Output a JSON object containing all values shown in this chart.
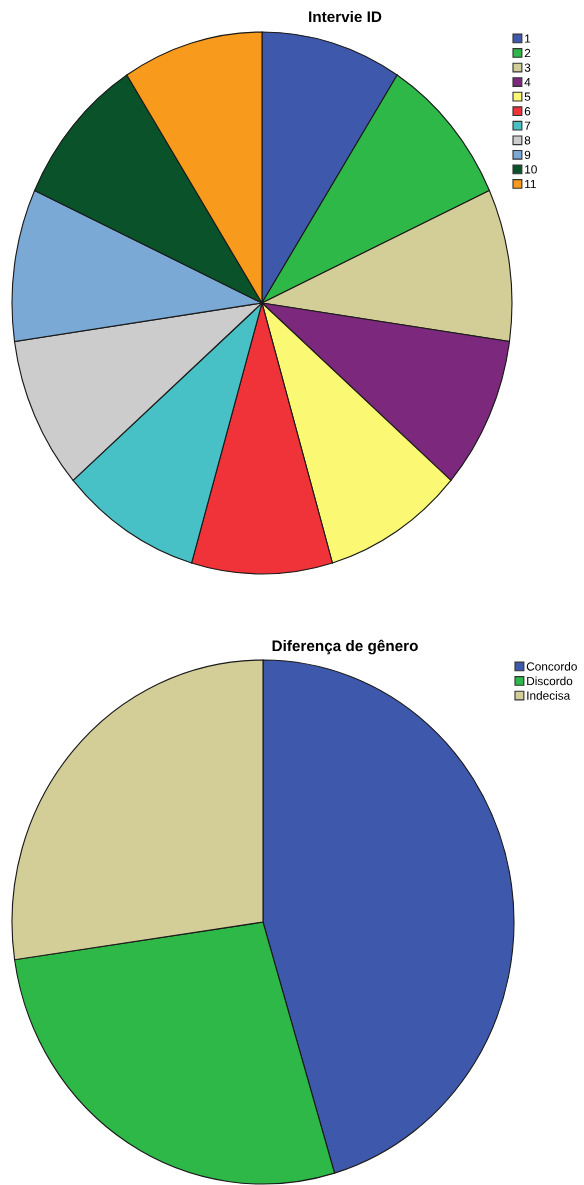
{
  "chart_data": [
    {
      "type": "pie",
      "title": "Intervie ID",
      "categories": [
        "1",
        "2",
        "3",
        "4",
        "5",
        "6",
        "7",
        "8",
        "9",
        "10",
        "11"
      ],
      "values": [
        9.09,
        9.09,
        9.09,
        9.09,
        9.09,
        9.09,
        9.09,
        9.09,
        9.09,
        9.09,
        9.09
      ],
      "colors": [
        "#3e58ac",
        "#2eb848",
        "#d3ce97",
        "#7b287d",
        "#fbf873",
        "#ef3338",
        "#48c1c6",
        "#cccccc",
        "#7ba9d5",
        "#09522a",
        "#f89a1c"
      ],
      "legend": "top right"
    },
    {
      "type": "pie",
      "title": "Diferença de gênero",
      "categories": [
        "Concordo",
        "Discordo",
        "Indecisa"
      ],
      "values": [
        45.4,
        27.3,
        27.3
      ],
      "colors": [
        "#3e58ac",
        "#2eb848",
        "#d3ce97"
      ],
      "legend": "top right"
    }
  ]
}
